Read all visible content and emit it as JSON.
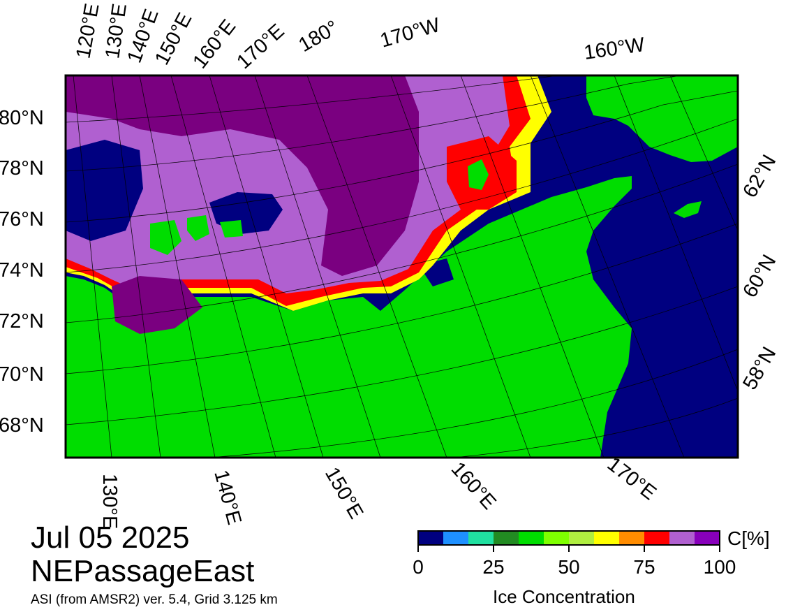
{
  "map": {
    "projection": "polar stereographic",
    "land_color": "#00dd00",
    "open_water_color": "#000080",
    "graticule_color": "#000000",
    "lon_labels_top": [
      "120°E",
      "130°E",
      "140°E",
      "150°E",
      "160°E",
      "170°E",
      "180°",
      "170°W",
      "160°W"
    ],
    "lat_labels_left": [
      "80°N",
      "78°N",
      "76°N",
      "74°N",
      "72°N",
      "70°N",
      "68°N"
    ],
    "lat_labels_right": [
      "62°N",
      "60°N",
      "58°N"
    ],
    "lon_labels_bottom": [
      "130°E",
      "140°E",
      "150°E",
      "160°E",
      "170°E"
    ]
  },
  "caption": {
    "date": "Jul 05 2025",
    "region": "NEPassageEast",
    "source": "ASI (from AMSR2) ver. 5.4,  Grid 3.125 km"
  },
  "colorbar": {
    "title": "Ice Concentration",
    "unit": "C[%]",
    "ticks": [
      "0",
      "25",
      "50",
      "75",
      "100"
    ],
    "range": [
      0,
      100
    ],
    "colors": [
      "#000080",
      "#1e90ff",
      "#20e0a0",
      "#228b22",
      "#00dd00",
      "#7fff00",
      "#b0ee40",
      "#ffff00",
      "#ff8c00",
      "#ff0000",
      "#b060d0",
      "#8800bb"
    ]
  }
}
